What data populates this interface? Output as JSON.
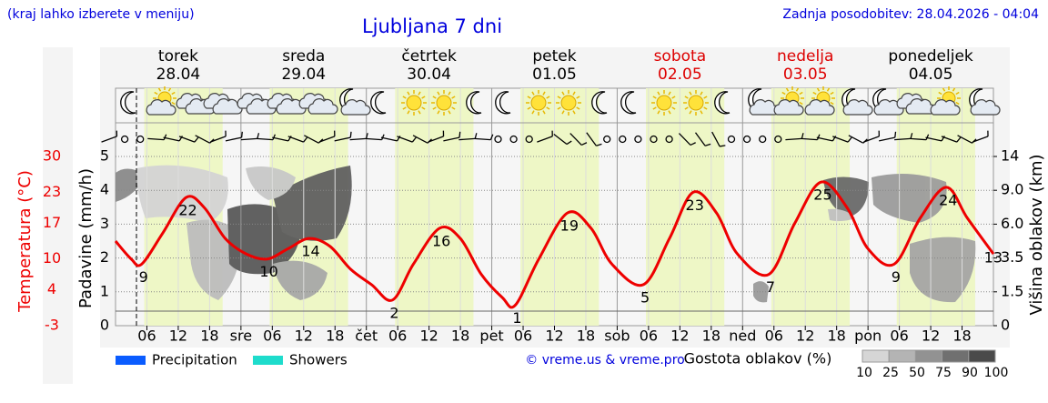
{
  "header": {
    "hint": "(kraj lahko izberete v meniju)",
    "title": "Ljubljana 7 dni",
    "updated": "Zadnja posodobitev: 28.04.2026 - 04:04"
  },
  "chart_data": {
    "type": "line",
    "days": [
      {
        "name": "torek",
        "date": "28.04",
        "color": "#000000"
      },
      {
        "name": "sreda",
        "date": "29.04",
        "color": "#000000"
      },
      {
        "name": "četrtek",
        "date": "30.04",
        "color": "#000000"
      },
      {
        "name": "petek",
        "date": "01.05",
        "color": "#000000"
      },
      {
        "name": "sobota",
        "date": "02.05",
        "color": "#dd0000"
      },
      {
        "name": "nedelja",
        "date": "03.05",
        "color": "#dd0000"
      },
      {
        "name": "ponedeljek",
        "date": "04.05",
        "color": "#000000"
      }
    ],
    "x": [
      0,
      3,
      5,
      9,
      13.5,
      17,
      21,
      25,
      29,
      33,
      37,
      41,
      45,
      49,
      53,
      57,
      62,
      66,
      70,
      74,
      76.5,
      81,
      86.5,
      91,
      95,
      101,
      106,
      110.5,
      115,
      119,
      125,
      130,
      135,
      140,
      144,
      149,
      154,
      159,
      163,
      168
    ],
    "series": [
      {
        "name": "Temperatura (°C)",
        "color": "#ee0000",
        "values": [
          13.5,
          10,
          9,
          15,
          22,
          20,
          14,
          11,
          10,
          12,
          14,
          12.5,
          8,
          5,
          2,
          9,
          16,
          14,
          7,
          2.5,
          1,
          10,
          19,
          16,
          9,
          5,
          14,
          23,
          19,
          11,
          7,
          17,
          25,
          20,
          12,
          9,
          18,
          24,
          18,
          11
        ],
        "value_labels": [
          null,
          null,
          "9",
          null,
          "22",
          null,
          null,
          null,
          "10",
          null,
          "14",
          null,
          null,
          null,
          "2",
          null,
          "16",
          null,
          null,
          null,
          "1",
          null,
          "19",
          null,
          null,
          "5",
          null,
          "23",
          null,
          null,
          "7",
          null,
          "25",
          null,
          null,
          "9",
          null,
          "24",
          null,
          null
        ]
      }
    ],
    "annotations": [
      {
        "text": "13"
      }
    ],
    "xlim": [
      0,
      168
    ],
    "xticks": [
      {
        "value": 6,
        "label": "06"
      },
      12,
      18,
      {
        "value": 24,
        "label": "sre"
      },
      {
        "value": 30,
        "label": "06"
      },
      {
        "value": 36,
        "label": "12"
      },
      {
        "value": 42,
        "label": "18"
      },
      {
        "value": 48,
        "label": "čet"
      },
      {
        "value": 54,
        "label": "06"
      },
      {
        "value": 60,
        "label": "12"
      },
      {
        "value": 66,
        "label": "18"
      },
      {
        "value": 72,
        "label": "pet"
      },
      {
        "value": 78,
        "label": "06"
      },
      {
        "value": 84,
        "label": "12"
      },
      {
        "value": 90,
        "label": "18"
      },
      {
        "value": 96,
        "label": "sob"
      },
      {
        "value": 102,
        "label": "06"
      },
      {
        "value": 108,
        "label": "12"
      },
      {
        "value": 114,
        "label": "18"
      },
      {
        "value": 120,
        "label": "ned"
      },
      {
        "value": 126,
        "label": "06"
      },
      {
        "value": 132,
        "label": "12"
      },
      {
        "value": 138,
        "label": "18"
      },
      {
        "value": 144,
        "label": "pon"
      },
      {
        "value": 150,
        "label": "06"
      },
      {
        "value": 156,
        "label": "12"
      },
      {
        "value": 162,
        "label": "18"
      }
    ],
    "ylabel": "Padavine (mm/h)",
    "ylim": [
      0,
      5
    ],
    "yticks": [
      0,
      1,
      2,
      3,
      4,
      5
    ],
    "templim": [
      -3,
      30
    ],
    "tempticks": [
      -3,
      4,
      10,
      17,
      23,
      30
    ],
    "y2label": "Višina oblakov (km)",
    "y2lim": [
      0,
      14
    ],
    "y2ticks": [
      0,
      1.5,
      3.5,
      {
        "value": 6,
        "label": "6.0"
      },
      {
        "value": 9,
        "label": "9.0"
      },
      14
    ],
    "grid": true,
    "legend": [
      {
        "name": "Precipitation",
        "color": "#0a5cff"
      },
      {
        "name": "Showers",
        "color": "#1edccc"
      }
    ],
    "credit": "© vreme.us & vreme.pro",
    "cloud_scale": {
      "title": "Gostota oblakov (%)",
      "ticks": [
        10,
        25,
        50,
        75,
        90,
        100
      ],
      "colors": [
        "#d6d6d6",
        "#b4b4b4",
        "#929292",
        "#707070",
        "#4a4a4a"
      ]
    }
  }
}
